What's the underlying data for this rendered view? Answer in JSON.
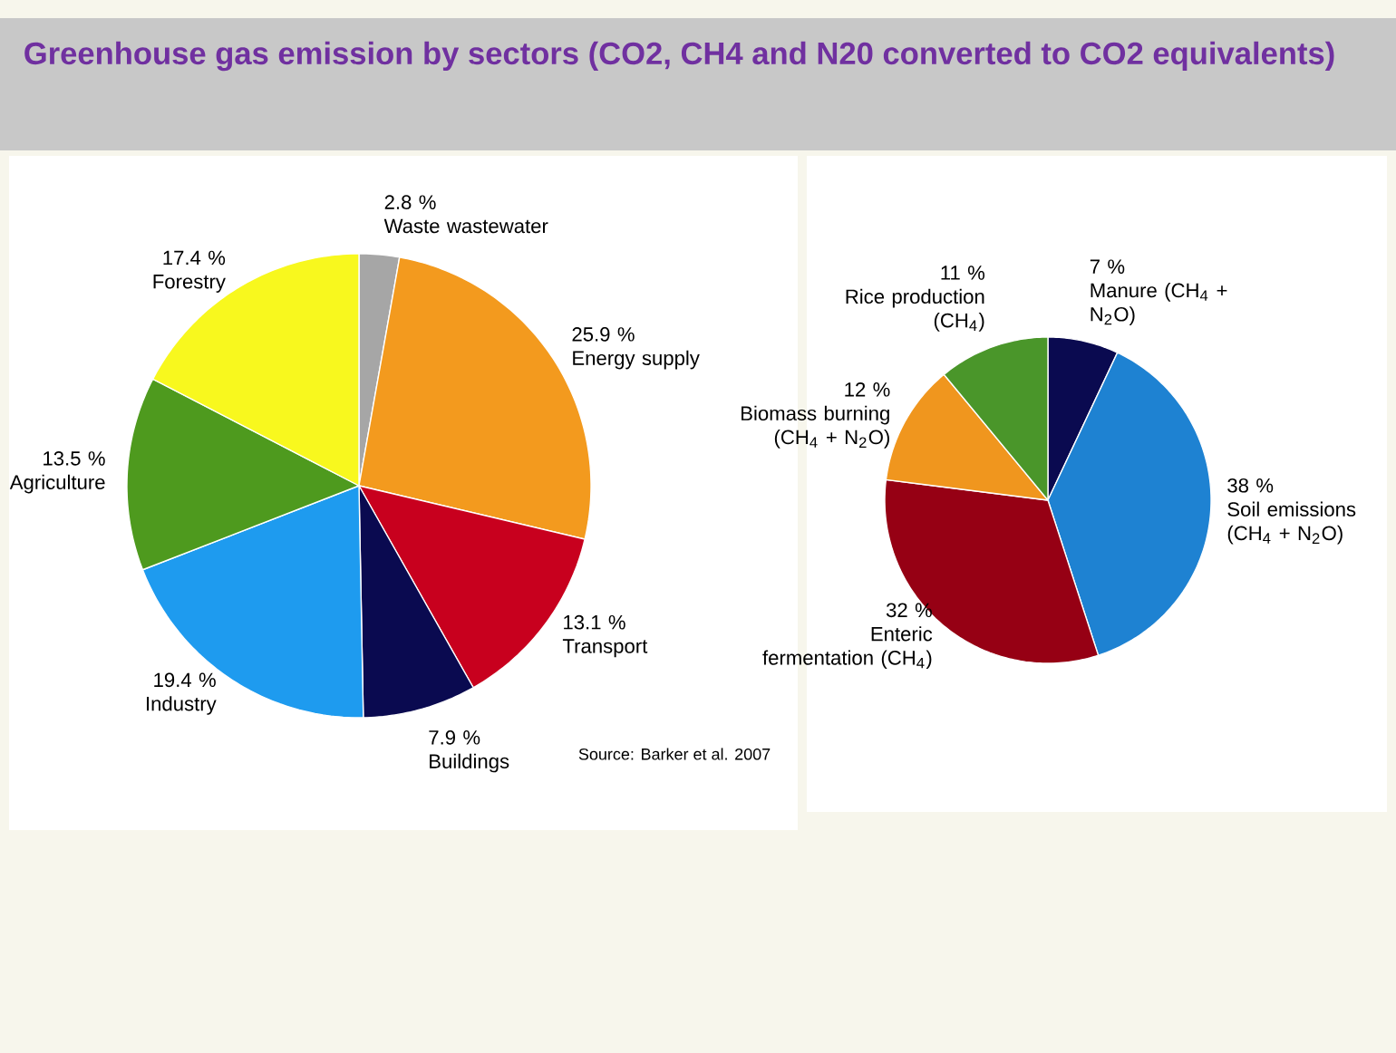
{
  "chart_data": [
    {
      "type": "pie",
      "title": "Greenhouse gas emission by sectors (CO2, CH4 and N20 converted to CO2 equivalents)",
      "categories": [
        "Waste wastewater",
        "Energy supply",
        "Transport",
        "Buildings",
        "Industry",
        "Agriculture",
        "Forestry"
      ],
      "values": [
        2.8,
        25.9,
        13.1,
        7.9,
        19.4,
        13.5,
        17.4
      ],
      "value_labels": [
        "2.8 %",
        "25.9 %",
        "13.1 %",
        "7.9 %",
        "19.4 %",
        "13.5 %",
        "17.4 %"
      ],
      "colors": [
        "#a6a6a6",
        "#f39a1e",
        "#c8001e",
        "#0a0a50",
        "#1e9bef",
        "#4e9a1e",
        "#f8f81e"
      ],
      "annotations": [
        "Source: Barker et al. 2007"
      ]
    },
    {
      "type": "pie",
      "categories": [
        "Manure (CH$_{4}$ + N$_{2}$O)",
        "Soil emissions (CH$_{4}$ + N$_{2}$O)",
        "Enteric fermentation (CH$_{4}$)",
        "Biomass burning (CH$_{4}$ + N$_{2}$O)",
        "Rice production (CH$_{4}$)"
      ],
      "values": [
        7,
        38,
        32,
        12,
        11
      ],
      "value_labels": [
        "7 %",
        "38 %",
        "32 %",
        "12 %",
        "11 %"
      ],
      "colors": [
        "#0a0a50",
        "#1e82d2",
        "#960014",
        "#f0961e",
        "#4a962a"
      ]
    }
  ]
}
